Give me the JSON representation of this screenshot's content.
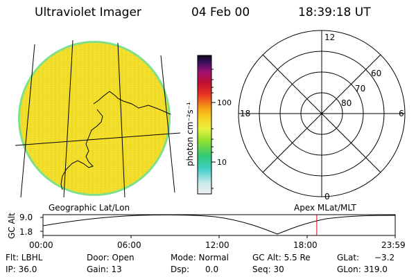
{
  "header": {
    "instrument": "Ultraviolet Imager",
    "date": "04 Feb 00",
    "time": "18:39:18 UT"
  },
  "colorbar": {
    "label": "photon cm⁻²s⁻¹",
    "ticks": [
      "100",
      "10"
    ]
  },
  "polar_plot": {
    "mlt_labels": {
      "top": "12",
      "bottom": "0",
      "left": "18",
      "right": "6"
    },
    "lat_labels": [
      "60",
      "70",
      "80"
    ]
  },
  "timeline": {
    "left_caption": "Geographic Lat/Lon",
    "right_caption": "Apex MLat/MLT",
    "y_axis_label": "GC Alt",
    "y_ticks": [
      "9.0",
      "1.8"
    ],
    "x_ticks": [
      "00:00",
      "06:00",
      "12:00",
      "18:00",
      "23:59"
    ],
    "current_time_hours": 18.655
  },
  "params": {
    "flt": "Flt: LBHL",
    "ip": "IP: 36.0",
    "door": "Door: Open",
    "gain": "Gain: 13",
    "mode": "Mode: Normal",
    "dsp": "Dsp:",
    "dsp_value": "0.0",
    "gc_alt": "GC Alt: 5.5 Re",
    "seq": "Seq: 30",
    "glat": "GLat:",
    "glat_value": "−3.2",
    "glon": "GLon: 319.0"
  },
  "colors": {
    "disk_fill": "#f2df2a",
    "disk_edge": "#6fd86f",
    "marker": "#d40000"
  }
}
